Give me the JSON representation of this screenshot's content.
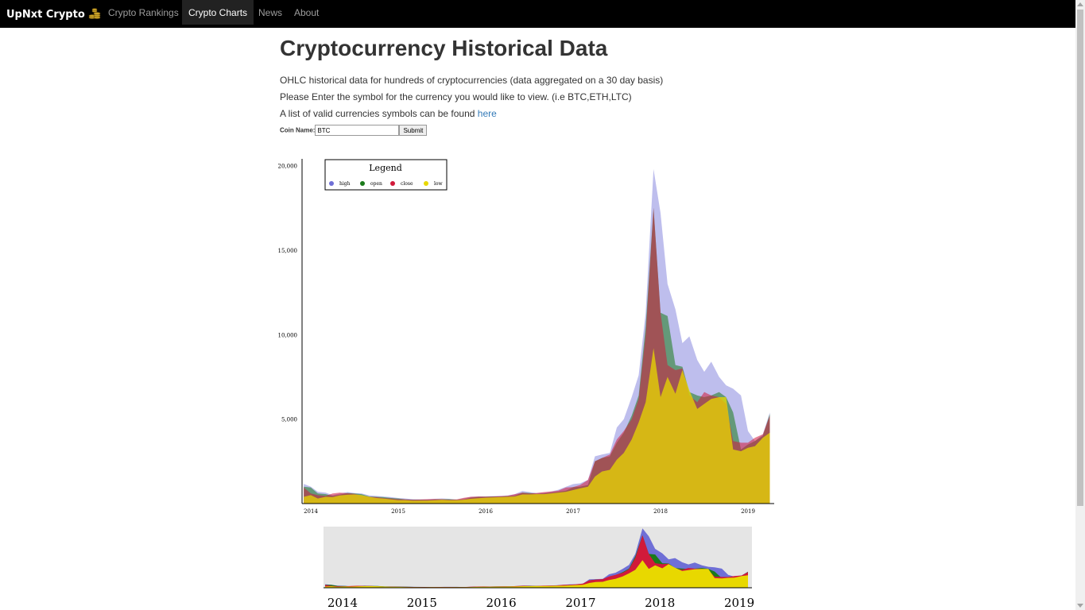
{
  "nav": {
    "brand": "UpNxt Crypto",
    "items": [
      {
        "label": "Crypto Rankings"
      },
      {
        "label": "Crypto Charts"
      },
      {
        "label": "News"
      },
      {
        "label": "About"
      }
    ]
  },
  "page": {
    "title": "Cryptocurrency Historical Data",
    "line1": "OHLC historical data for hundreds of cryptocurrencies (data aggregated on a 30 day basis)",
    "line2": "Please Enter the symbol for the currency you would like to view. (i.e BTC,ETH,LTC)",
    "line3": "A list of valid currencies symbols can be found ",
    "link": "here"
  },
  "form": {
    "label": "Coin Name:",
    "value": "BTC",
    "submit": "Submit"
  },
  "colors": {
    "high": "#6f6fd6",
    "open": "#1a7a1a",
    "close": "#d11a3a",
    "low": "#e8d800"
  },
  "chart_data": {
    "type": "area",
    "legend_title": "Legend",
    "legend_placement": "top-left",
    "yticks": [
      5000,
      10000,
      15000,
      20000
    ],
    "ytick_labels": [
      "5,000",
      "10,000",
      "15,000",
      "20,000"
    ],
    "ylim": [
      0,
      20000
    ],
    "xlim": [
      2013.9,
      2019.3
    ],
    "xticks": [
      "2014",
      "2015",
      "2016",
      "2017",
      "2018",
      "2019"
    ],
    "brush_xticks": [
      "2014",
      "2015",
      "2016",
      "2017",
      "2018",
      "2019"
    ],
    "x": [
      2013.92,
      2014.0,
      2014.08,
      2014.17,
      2014.25,
      2014.33,
      2014.42,
      2014.5,
      2014.58,
      2014.67,
      2014.75,
      2014.83,
      2014.92,
      2015.0,
      2015.08,
      2015.17,
      2015.25,
      2015.33,
      2015.42,
      2015.5,
      2015.58,
      2015.67,
      2015.75,
      2015.83,
      2015.92,
      2016.0,
      2016.08,
      2016.17,
      2016.25,
      2016.33,
      2016.42,
      2016.5,
      2016.58,
      2016.67,
      2016.75,
      2016.83,
      2016.92,
      2017.0,
      2017.08,
      2017.17,
      2017.25,
      2017.33,
      2017.42,
      2017.5,
      2017.58,
      2017.67,
      2017.75,
      2017.83,
      2017.92,
      2018.0,
      2018.08,
      2018.17,
      2018.25,
      2018.33,
      2018.42,
      2018.5,
      2018.58,
      2018.67,
      2018.75,
      2018.83,
      2018.92,
      2019.0,
      2019.08,
      2019.17,
      2019.25
    ],
    "series": [
      {
        "name": "high",
        "values": [
          1160,
          1000,
          700,
          650,
          500,
          600,
          680,
          620,
          600,
          480,
          450,
          420,
          380,
          330,
          300,
          260,
          250,
          240,
          280,
          300,
          280,
          240,
          300,
          400,
          420,
          430,
          440,
          450,
          480,
          550,
          750,
          680,
          620,
          640,
          720,
          820,
          1000,
          1150,
          1200,
          1400,
          2800,
          2900,
          3000,
          4500,
          5000,
          6300,
          7600,
          11300,
          19800,
          17200,
          13000,
          11500,
          9500,
          9900,
          8500,
          7800,
          8400,
          7500,
          7000,
          6800,
          6400,
          4300,
          3700,
          4100,
          5400
        ]
      },
      {
        "name": "open",
        "values": [
          1000,
          950,
          600,
          560,
          450,
          520,
          620,
          600,
          560,
          420,
          400,
          380,
          330,
          300,
          250,
          230,
          230,
          220,
          240,
          260,
          260,
          220,
          250,
          350,
          400,
          400,
          420,
          420,
          440,
          460,
          650,
          630,
          580,
          600,
          650,
          700,
          760,
          970,
          1000,
          1100,
          2500,
          2700,
          2800,
          3600,
          4200,
          5200,
          6400,
          10500,
          17500,
          11300,
          11100,
          8200,
          8100,
          6600,
          6400,
          6300,
          6400,
          6600,
          6300,
          5400,
          3200,
          3500,
          3700,
          4000,
          5300
        ]
      },
      {
        "name": "close",
        "values": [
          950,
          600,
          500,
          450,
          600,
          650,
          610,
          580,
          450,
          400,
          380,
          330,
          300,
          260,
          250,
          230,
          240,
          260,
          270,
          260,
          230,
          250,
          340,
          400,
          420,
          410,
          420,
          440,
          460,
          550,
          650,
          600,
          620,
          680,
          720,
          760,
          950,
          980,
          1100,
          1400,
          2500,
          2700,
          2900,
          3800,
          4300,
          5000,
          6200,
          10000,
          17500,
          11300,
          8200,
          7900,
          8000,
          6400,
          6000,
          6600,
          6400,
          6300,
          5900,
          3700,
          3600,
          3600,
          3900,
          4100,
          5200
        ]
      },
      {
        "name": "low",
        "values": [
          400,
          500,
          300,
          400,
          380,
          480,
          520,
          540,
          500,
          400,
          330,
          300,
          250,
          200,
          200,
          170,
          180,
          180,
          200,
          220,
          200,
          200,
          230,
          280,
          320,
          350,
          360,
          380,
          400,
          420,
          540,
          540,
          560,
          560,
          600,
          650,
          700,
          800,
          900,
          1000,
          1600,
          1900,
          2000,
          2600,
          3000,
          3800,
          4800,
          6000,
          9200,
          6300,
          7500,
          6500,
          7900,
          6700,
          5600,
          5900,
          6200,
          6300,
          6300,
          3200,
          3100,
          3300,
          3400,
          3900,
          4200
        ]
      }
    ]
  }
}
